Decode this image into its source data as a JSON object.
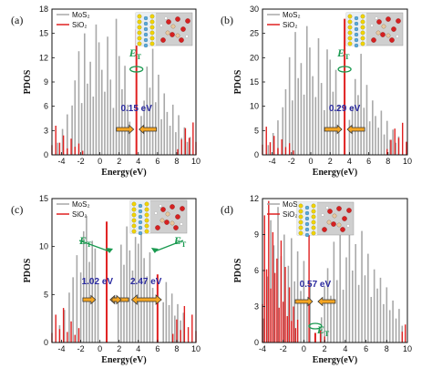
{
  "figure": {
    "colors": {
      "mos2": "#a8a8a8",
      "sio2": "#e02020",
      "gap_text": "#2a2aa0",
      "et": "#1a9a50",
      "arrow": "#f5a623"
    },
    "et_label": "E",
    "et_sub": "T"
  },
  "chart_data": [
    {
      "type": "line",
      "panel_label": "(a)",
      "xlabel": "Energy(eV)",
      "ylabel": "PDOS",
      "xlim": [
        -5,
        10
      ],
      "ylim": [
        0,
        18
      ],
      "xticks": [
        -4,
        -2,
        0,
        2,
        4,
        6,
        8,
        10
      ],
      "yticks": [
        0,
        3,
        6,
        9,
        12,
        15,
        18
      ],
      "legend": [
        "MoS2",
        "SiO2"
      ],
      "legend_display": [
        "MoS₂",
        "SiO₂"
      ],
      "trap_energies": [
        3.8
      ],
      "gaps": [
        {
          "label": "0.15 eV",
          "value": 0.15
        }
      ],
      "series": [
        {
          "name": "MoS2",
          "x": [
            -4.4,
            -3.9,
            -3.4,
            -2.9,
            -2.6,
            -2.2,
            -1.9,
            -1.6,
            -1.3,
            -1.0,
            -0.7,
            -0.4,
            -0.1,
            0.2,
            0.5,
            0.8,
            1.1,
            1.4,
            1.7,
            2.0,
            2.3,
            2.6,
            2.9,
            3.1,
            4.3,
            4.6,
            4.9,
            5.2,
            5.5,
            5.8,
            6.1,
            6.4,
            6.7,
            7.0,
            7.3,
            7.6,
            7.9,
            8.2,
            8.5,
            8.8,
            9.1,
            9.4
          ],
          "y": [
            1.5,
            3.2,
            5.0,
            6.1,
            9.2,
            12.8,
            6.4,
            15.0,
            8.8,
            11.5,
            7.2,
            16.1,
            13.9,
            10.5,
            7.8,
            14.6,
            9.3,
            5.8,
            16.8,
            12.2,
            8.1,
            11.0,
            6.2,
            4.1,
            4.8,
            6.7,
            10.9,
            8.3,
            13.1,
            6.5,
            9.9,
            4.4,
            7.6,
            5.3,
            3.6,
            6.2,
            2.8,
            4.9,
            2.1,
            3.4,
            1.6,
            2.2
          ]
        },
        {
          "name": "SiO2",
          "x": [
            -5.0,
            -4.6,
            -4.2,
            -3.8,
            -3.4,
            -3.0,
            -2.6,
            -2.2,
            -1.8,
            3.8,
            8.1,
            8.5,
            8.9,
            9.3,
            9.7,
            10.0
          ],
          "y": [
            1.2,
            3.6,
            1.5,
            2.4,
            0.8,
            2.0,
            1.0,
            1.4,
            0.5,
            15.5,
            0.7,
            1.9,
            3.3,
            2.1,
            4.0,
            1.6
          ]
        }
      ]
    },
    {
      "type": "line",
      "panel_label": "(b)",
      "xlabel": "Energy(eV)",
      "ylabel": "PDOS",
      "xlim": [
        -5,
        10
      ],
      "ylim": [
        0,
        30
      ],
      "xticks": [
        -4,
        -2,
        0,
        2,
        4,
        6,
        8,
        10
      ],
      "yticks": [
        0,
        5,
        10,
        15,
        20,
        25,
        30
      ],
      "legend": [
        "MoS2",
        "SiO2"
      ],
      "legend_display": [
        "MoS₂",
        "SiO₂"
      ],
      "trap_energies": [
        3.5
      ],
      "gaps": [
        {
          "label": "0.29 eV",
          "value": 0.29
        }
      ],
      "series": [
        {
          "name": "MoS2",
          "x": [
            -4.4,
            -3.9,
            -3.4,
            -2.9,
            -2.6,
            -2.2,
            -1.9,
            -1.6,
            -1.3,
            -1.0,
            -0.7,
            -0.4,
            -0.1,
            0.2,
            0.5,
            0.8,
            1.1,
            1.4,
            1.7,
            2.0,
            2.3,
            2.6,
            2.9,
            4.0,
            4.3,
            4.6,
            4.9,
            5.2,
            5.5,
            5.8,
            6.1,
            6.4,
            6.7,
            7.0,
            7.3,
            7.6,
            7.9,
            8.2,
            8.5,
            8.8,
            9.1
          ],
          "y": [
            2.0,
            4.5,
            7.1,
            9.8,
            13.5,
            20.1,
            11.2,
            25.3,
            15.8,
            18.9,
            12.4,
            26.5,
            22.1,
            16.2,
            11.9,
            24.0,
            14.8,
            9.2,
            21.7,
            19.6,
            13.0,
            17.5,
            10.1,
            7.2,
            10.0,
            15.6,
            12.3,
            20.8,
            9.7,
            14.4,
            6.9,
            11.2,
            8.0,
            5.6,
            9.1,
            4.2,
            7.0,
            3.1,
            5.2,
            2.5,
            3.8
          ]
        },
        {
          "name": "SiO2",
          "x": [
            -5.0,
            -4.6,
            -4.2,
            -3.8,
            -3.4,
            -3.0,
            -2.6,
            -2.2,
            -1.8,
            3.5,
            7.9,
            8.3,
            8.7,
            9.1,
            9.5,
            9.9
          ],
          "y": [
            2.1,
            5.8,
            2.6,
            3.9,
            1.4,
            3.2,
            1.6,
            2.4,
            0.9,
            28.0,
            1.2,
            3.1,
            5.4,
            3.5,
            6.6,
            2.7
          ]
        }
      ]
    },
    {
      "type": "line",
      "panel_label": "(c)",
      "xlabel": "Energy(eV)",
      "ylabel": "PDOS",
      "xlim": [
        -5,
        10
      ],
      "ylim": [
        0,
        15
      ],
      "xticks": [
        -4,
        -2,
        0,
        2,
        4,
        6,
        8,
        10
      ],
      "yticks": [
        0,
        5,
        10,
        15
      ],
      "legend": [
        "MoS2",
        "SiO2"
      ],
      "legend_display": [
        "MoS₂",
        "SiO₂"
      ],
      "trap_energies": [
        0.7,
        6.0
      ],
      "gaps": [
        {
          "label": "1.02 eV",
          "value": 1.02
        },
        {
          "label": "2.47 eV",
          "value": 2.47
        }
      ],
      "series": [
        {
          "name": "MoS2",
          "x": [
            -4.2,
            -3.7,
            -3.2,
            -2.8,
            -2.4,
            -2.0,
            -1.7,
            -1.4,
            -1.1,
            -0.8,
            -0.5,
            -0.2,
            1.9,
            2.2,
            2.5,
            2.8,
            3.1,
            3.4,
            3.7,
            4.0,
            4.3,
            4.6,
            4.9,
            5.2,
            5.5,
            6.6,
            6.9,
            7.2,
            7.5,
            7.8,
            8.1,
            8.4,
            8.7
          ],
          "y": [
            1.8,
            3.4,
            5.2,
            6.8,
            9.1,
            7.3,
            11.6,
            13.2,
            8.4,
            10.6,
            9.8,
            6.1,
            4.5,
            10.2,
            8.1,
            12.1,
            9.6,
            7.5,
            11.0,
            10.3,
            12.6,
            8.8,
            6.9,
            9.4,
            5.7,
            4.2,
            6.3,
            3.9,
            5.1,
            2.8,
            4.0,
            2.3,
            3.1
          ]
        },
        {
          "name": "SiO2",
          "x": [
            -5.0,
            -4.6,
            -4.2,
            -3.8,
            -3.4,
            -3.0,
            -2.6,
            -2.2,
            0.7,
            6.0,
            7.6,
            8.0,
            8.4,
            8.8,
            9.2,
            9.6,
            10.0
          ],
          "y": [
            1.0,
            2.9,
            1.4,
            3.6,
            1.1,
            2.2,
            0.8,
            1.5,
            12.6,
            7.1,
            0.9,
            2.4,
            1.3,
            3.8,
            1.6,
            2.9,
            1.2
          ]
        }
      ]
    },
    {
      "type": "line",
      "panel_label": "(d)",
      "xlabel": "Energy(eV)",
      "ylabel": "PDOS",
      "xlim": [
        -4,
        10
      ],
      "ylim": [
        0,
        12
      ],
      "xticks": [
        -4,
        -2,
        0,
        2,
        4,
        6,
        8,
        10
      ],
      "yticks": [
        0,
        3,
        6,
        9,
        12
      ],
      "legend": [
        "MoS2",
        "SiO2"
      ],
      "legend_display": [
        "MoS₂",
        "SiO₂"
      ],
      "trap_energies": [
        1.1
      ],
      "gaps": [
        {
          "label": "0.57 eV",
          "value": 0.57
        }
      ],
      "series": [
        {
          "name": "MoS2",
          "x": [
            -3.9,
            -3.5,
            -3.2,
            -2.9,
            -2.5,
            -2.2,
            -1.9,
            -1.5,
            -1.2,
            -0.9,
            -0.6,
            -0.3,
            0.0,
            0.3,
            0.6,
            1.7,
            2.0,
            2.3,
            2.6,
            2.9,
            3.2,
            3.5,
            3.8,
            4.1,
            4.4,
            4.7,
            5.0,
            5.3,
            5.6,
            5.9,
            6.2,
            6.5,
            6.8,
            7.1,
            7.4,
            7.7,
            8.0,
            8.3,
            8.6,
            8.9,
            9.2,
            9.5
          ],
          "y": [
            2.0,
            5.5,
            10.2,
            8.1,
            11.3,
            7.2,
            9.0,
            6.4,
            8.7,
            5.1,
            7.6,
            4.3,
            6.8,
            3.5,
            5.0,
            2.1,
            4.7,
            6.2,
            3.9,
            8.4,
            5.2,
            9.6,
            4.4,
            7.1,
            10.5,
            6.0,
            8.2,
            4.8,
            9.3,
            5.6,
            7.4,
            3.8,
            6.1,
            4.5,
            5.4,
            3.2,
            4.6,
            2.7,
            3.5,
            2.0,
            2.8,
            1.4
          ]
        },
        {
          "name": "SiO2",
          "x": [
            -4.0,
            -3.8,
            -3.6,
            -3.4,
            -3.2,
            -3.0,
            -2.8,
            -2.6,
            -2.4,
            -2.2,
            -2.0,
            -1.8,
            -1.6,
            -1.4,
            -1.2,
            -1.0,
            -0.8,
            -0.6,
            0.5,
            1.1,
            1.6,
            2.0,
            9.5,
            9.8
          ],
          "y": [
            3.2,
            10.6,
            6.1,
            11.8,
            4.5,
            9.2,
            5.8,
            7.0,
            2.9,
            8.5,
            3.4,
            6.3,
            2.2,
            4.6,
            1.8,
            3.0,
            1.2,
            1.9,
            11.6,
            0.8,
            1.0,
            0.5,
            0.9,
            1.5
          ]
        }
      ]
    }
  ]
}
